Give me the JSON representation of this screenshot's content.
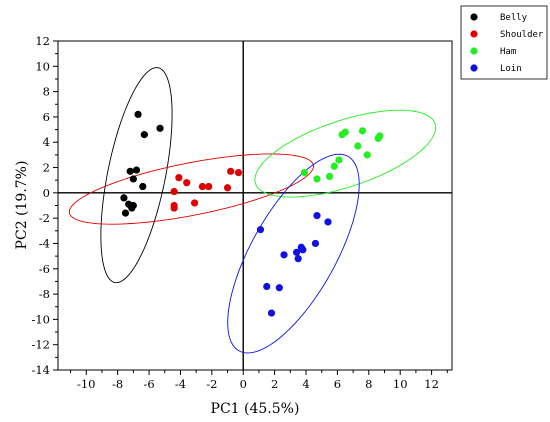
{
  "chart_data": {
    "type": "scatter",
    "title": "",
    "xlabel": "PC1  (45.5%)",
    "ylabel": "PC2  (19.7%)",
    "xlim": [
      -11.8,
      13.3
    ],
    "ylim": [
      -14,
      12
    ],
    "xticks": [
      -10,
      -8,
      -6,
      -4,
      -2,
      0,
      2,
      4,
      6,
      8,
      10,
      12
    ],
    "yticks": [
      -14,
      -12,
      -10,
      -8,
      -6,
      -4,
      -2,
      0,
      2,
      4,
      6,
      8,
      10,
      12
    ],
    "grid": false,
    "zero_lines": true,
    "legend_position": "top-right, outside plot",
    "series": [
      {
        "name": "Belly",
        "color": "#000000",
        "points": [
          [
            -6.7,
            6.2
          ],
          [
            -5.3,
            5.1
          ],
          [
            -6.3,
            4.6
          ],
          [
            -7.2,
            1.7
          ],
          [
            -6.8,
            1.8
          ],
          [
            -7.0,
            1.1
          ],
          [
            -6.4,
            0.5
          ],
          [
            -7.6,
            -0.4
          ],
          [
            -7.3,
            -0.9
          ],
          [
            -7.0,
            -1.0
          ],
          [
            -7.1,
            -1.2
          ],
          [
            -7.5,
            -1.6
          ]
        ],
        "ellipse": {
          "center": [
            -6.8,
            1.4
          ],
          "semi_major": 8.6,
          "semi_minor": 1.85,
          "angle_deg": 81
        }
      },
      {
        "name": "Shoulder",
        "color": "#e00000",
        "points": [
          [
            -0.8,
            1.7
          ],
          [
            -0.3,
            1.6
          ],
          [
            -4.1,
            1.2
          ],
          [
            -3.6,
            0.8
          ],
          [
            -2.6,
            0.5
          ],
          [
            -2.2,
            0.5
          ],
          [
            -1.0,
            0.4
          ],
          [
            -4.4,
            0.1
          ],
          [
            -3.1,
            -0.8
          ],
          [
            -4.4,
            -1.0
          ],
          [
            -4.4,
            -1.2
          ]
        ],
        "ellipse": {
          "center": [
            -3.3,
            0.3
          ],
          "semi_major": 8.0,
          "semi_minor": 2.05,
          "angle_deg": 14
        }
      },
      {
        "name": "Ham",
        "color": "#22ee22",
        "points": [
          [
            7.6,
            4.9
          ],
          [
            6.5,
            4.8
          ],
          [
            6.3,
            4.6
          ],
          [
            8.7,
            4.5
          ],
          [
            8.6,
            4.3
          ],
          [
            7.3,
            3.7
          ],
          [
            7.9,
            3.0
          ],
          [
            6.1,
            2.6
          ],
          [
            5.8,
            2.1
          ],
          [
            3.9,
            1.6
          ],
          [
            5.5,
            1.3
          ],
          [
            4.7,
            1.1
          ]
        ],
        "ellipse": {
          "center": [
            6.5,
            3.1
          ],
          "semi_major": 6.2,
          "semi_minor": 2.55,
          "angle_deg": 24
        }
      },
      {
        "name": "Loin",
        "color": "#1010e0",
        "points": [
          [
            4.7,
            -1.8
          ],
          [
            5.4,
            -2.3
          ],
          [
            1.1,
            -2.9
          ],
          [
            4.6,
            -4.0
          ],
          [
            3.7,
            -4.3
          ],
          [
            3.8,
            -4.5
          ],
          [
            3.4,
            -4.7
          ],
          [
            2.6,
            -4.9
          ],
          [
            3.5,
            -5.2
          ],
          [
            1.5,
            -7.4
          ],
          [
            2.3,
            -7.5
          ],
          [
            1.8,
            -9.5
          ]
        ],
        "ellipse": {
          "center": [
            3.2,
            -4.8
          ],
          "semi_major": 8.45,
          "semi_minor": 2.8,
          "angle_deg": 67
        }
      }
    ]
  }
}
